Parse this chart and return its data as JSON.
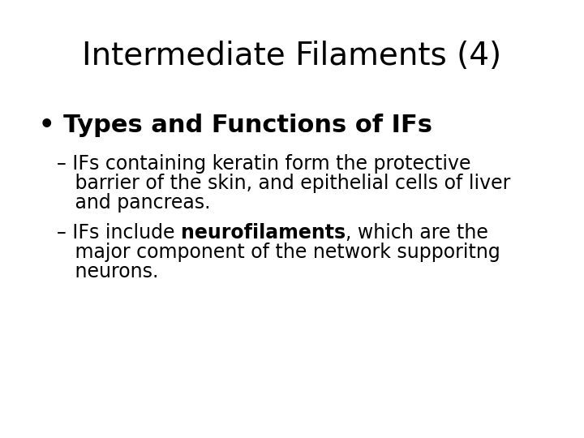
{
  "title": "Intermediate Filaments (4)",
  "title_fontsize": 28,
  "background_color": "#ffffff",
  "text_color": "#000000",
  "bullet_text": "Types and Functions of IFs",
  "bullet_fontsize": 22,
  "sub_fontsize": 17,
  "sub1_line1": "– IFs containing keratin form the protective",
  "sub1_line2": "   barrier of the skin, and epithelial cells of liver",
  "sub1_line3": "   and pancreas.",
  "sub2_prefix": "– IFs include ",
  "sub2_bold": "neurofilaments",
  "sub2_suffix": ", which are the",
  "sub2_line2": "   major component of the network supporitng",
  "sub2_line3": "   neurons."
}
